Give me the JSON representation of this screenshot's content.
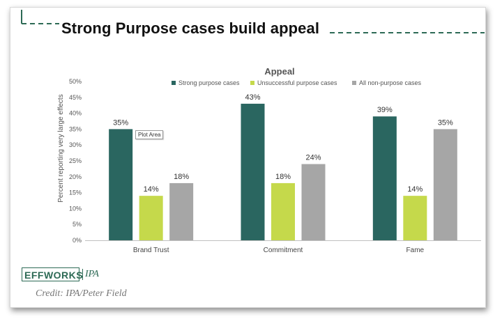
{
  "slide": {
    "title": "Strong Purpose cases build appeal",
    "credit": "Credit: IPA/Peter Field",
    "logo": {
      "brand": "EFFWORKS",
      "partner": "IPA"
    },
    "tooltip": "Plot Area"
  },
  "colors": {
    "accent": "#2d6a55",
    "strong": "#2a6660",
    "unsuccessful": "#c5d94b",
    "nonpurpose": "#a6a6a6"
  },
  "chart_data": {
    "type": "bar",
    "title": "Appeal",
    "ylabel": "Percent reporting very large effects",
    "xlabel": "",
    "categories": [
      "Brand Trust",
      "Commitment",
      "Fame"
    ],
    "series": [
      {
        "name": "Strong purpose cases",
        "values": [
          35,
          43,
          39
        ],
        "labels": [
          "35%",
          "43%",
          "39%"
        ]
      },
      {
        "name": "Unsuccessful purpose cases",
        "values": [
          14,
          18,
          14
        ],
        "labels": [
          "14%",
          "18%",
          "14%"
        ]
      },
      {
        "name": "All non-purpose cases",
        "values": [
          18,
          24,
          35
        ],
        "labels": [
          "18%",
          "24%",
          "35%"
        ]
      }
    ],
    "ylim": [
      0,
      50
    ],
    "yticks": [
      "0%",
      "5%",
      "10%",
      "15%",
      "20%",
      "25%",
      "30%",
      "35%",
      "40%",
      "45%",
      "50%"
    ],
    "grid": false,
    "legend_position": "top"
  }
}
